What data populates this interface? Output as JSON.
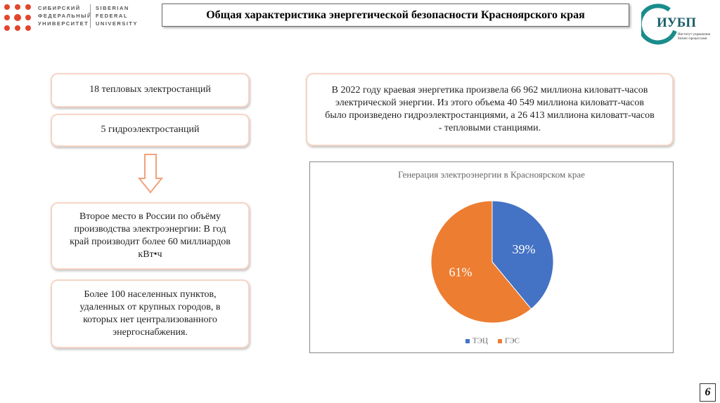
{
  "header": {
    "logo_left_ru": [
      "СИБИРСКИЙ",
      "ФЕДЕРАЛЬНЫЙ",
      "УНИВЕРСИТЕТ"
    ],
    "logo_left_en": [
      "SIBERIAN",
      "FEDERAL",
      "UNIVERSITY"
    ],
    "title": "Общая характеристика энергетической безопасности Красноярского края",
    "logo_right": "ИУБП",
    "logo_right_caption": [
      "Институт управления",
      "бизнес-процессами"
    ]
  },
  "left_boxes": [
    "18 тепловых электростанций",
    "5 гидроэлектростанций",
    "Второе место в России по объёму производства электроэнергии: В год край производит более 60 миллиардов кВт•ч",
    "Более 100 населенных пунктов, удаленных от крупных городов, в которых нет централизованного энергоснабжения."
  ],
  "summary": "В 2022 году краевая энергетика произвела 66 962 миллиона киловатт-часов электрической энергии. Из этого объема 40 549 миллиона киловатт-часов было произведено гидроэлектростанциями, а 26 413 миллиона киловатт-часов - тепловыми станциями.",
  "chart_data": {
    "type": "pie",
    "title": "Генерация электроэнергии в Красноярском крае",
    "categories": [
      "ТЭЦ",
      "ГЭС"
    ],
    "values": [
      39,
      61
    ],
    "value_labels": [
      "39%",
      "61%"
    ],
    "colors": [
      "#4472c4",
      "#ed7d31"
    ],
    "legend": "bottom"
  },
  "page_number": "6"
}
